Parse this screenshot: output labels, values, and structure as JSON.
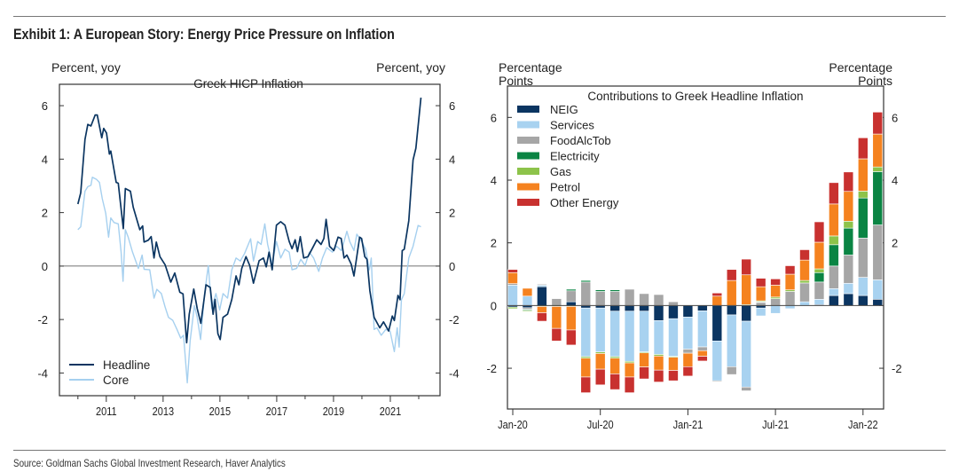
{
  "title": "Exhibit 1: A European Story: Energy Price Pressure on Inflation",
  "source": "Source: Goldman Sachs Global Investment Research, Haver Analytics",
  "chart_data": [
    {
      "type": "line",
      "title": "Greek HICP Inflation",
      "ylabel_left": "Percent, yoy",
      "ylabel_right": "Percent, yoy",
      "xlim": [
        2009.35,
        2022.75
      ],
      "ylim": [
        -4.85,
        6.8
      ],
      "yticks": [
        6,
        4,
        2,
        0,
        -2,
        -4
      ],
      "xtick_labels": [
        "2011",
        "2013",
        "2015",
        "2017",
        "2019",
        "2021"
      ],
      "xticks_minor": [
        2010,
        2012,
        2014,
        2016,
        2018,
        2020,
        2022
      ],
      "zero_line": true,
      "grid": false,
      "legend": "bottom-left",
      "series": [
        {
          "name": "Headline",
          "color": "#0b3561",
          "points": [
            [
              2010.0,
              2.32
            ],
            [
              2010.1,
              2.74
            ],
            [
              2010.25,
              4.74
            ],
            [
              2010.35,
              5.3
            ],
            [
              2010.46,
              5.24
            ],
            [
              2010.61,
              5.65
            ],
            [
              2010.68,
              5.65
            ],
            [
              2010.84,
              4.8
            ],
            [
              2010.91,
              5.15
            ],
            [
              2011.01,
              4.97
            ],
            [
              2011.11,
              4.19
            ],
            [
              2011.16,
              4.3
            ],
            [
              2011.35,
              3.13
            ],
            [
              2011.42,
              3.1
            ],
            [
              2011.6,
              1.4
            ],
            [
              2011.67,
              2.9
            ],
            [
              2011.85,
              2.8
            ],
            [
              2011.95,
              2.2
            ],
            [
              2012.18,
              1.36
            ],
            [
              2012.28,
              1.5
            ],
            [
              2012.33,
              0.9
            ],
            [
              2012.48,
              0.97
            ],
            [
              2012.58,
              1.1
            ],
            [
              2012.68,
              0.3
            ],
            [
              2012.76,
              0.9
            ],
            [
              2012.89,
              0.35
            ],
            [
              2013.07,
              0.05
            ],
            [
              2013.27,
              -0.6
            ],
            [
              2013.41,
              -0.26
            ],
            [
              2013.59,
              -0.98
            ],
            [
              2013.7,
              -1.04
            ],
            [
              2013.83,
              -2.87
            ],
            [
              2013.92,
              -1.8
            ],
            [
              2014.08,
              -0.86
            ],
            [
              2014.2,
              -1.59
            ],
            [
              2014.33,
              -2.14
            ],
            [
              2014.51,
              -0.7
            ],
            [
              2014.66,
              -0.8
            ],
            [
              2014.76,
              -1.8
            ],
            [
              2014.83,
              -1.25
            ],
            [
              2014.93,
              -2.53
            ],
            [
              2015.01,
              -2.75
            ],
            [
              2015.11,
              -1.92
            ],
            [
              2015.27,
              -1.8
            ],
            [
              2015.42,
              -1.25
            ],
            [
              2015.57,
              -0.37
            ],
            [
              2015.67,
              -0.7
            ],
            [
              2015.77,
              -0.09
            ],
            [
              2015.92,
              0.35
            ],
            [
              2016.05,
              0.02
            ],
            [
              2016.18,
              -0.64
            ],
            [
              2016.38,
              0.2
            ],
            [
              2016.53,
              0.3
            ],
            [
              2016.63,
              -0.03
            ],
            [
              2016.73,
              0.52
            ],
            [
              2016.84,
              -0.14
            ],
            [
              2016.99,
              1.53
            ],
            [
              2017.14,
              1.66
            ],
            [
              2017.29,
              1.53
            ],
            [
              2017.44,
              0.92
            ],
            [
              2017.54,
              0.65
            ],
            [
              2017.65,
              0.98
            ],
            [
              2017.73,
              0.54
            ],
            [
              2017.83,
              1.1
            ],
            [
              2017.95,
              0.3
            ],
            [
              2018.1,
              0.35
            ],
            [
              2018.25,
              0.65
            ],
            [
              2018.41,
              0.98
            ],
            [
              2018.56,
              0.81
            ],
            [
              2018.66,
              1.03
            ],
            [
              2018.74,
              1.75
            ],
            [
              2018.86,
              0.74
            ],
            [
              2019.01,
              0.58
            ],
            [
              2019.16,
              1.08
            ],
            [
              2019.27,
              1.03
            ],
            [
              2019.37,
              0.3
            ],
            [
              2019.47,
              0.41
            ],
            [
              2019.62,
              0.08
            ],
            [
              2019.72,
              -0.37
            ],
            [
              2019.92,
              1.08
            ],
            [
              2019.99,
              1.03
            ],
            [
              2020.1,
              0.35
            ],
            [
              2020.18,
              0.25
            ],
            [
              2020.28,
              -0.92
            ],
            [
              2020.43,
              -1.92
            ],
            [
              2020.63,
              -2.31
            ],
            [
              2020.76,
              -2.09
            ],
            [
              2020.94,
              -2.43
            ],
            [
              2021.07,
              -1.87
            ],
            [
              2021.14,
              -2.04
            ],
            [
              2021.27,
              -1.1
            ],
            [
              2021.34,
              -1.26
            ],
            [
              2021.42,
              0.58
            ],
            [
              2021.49,
              0.63
            ],
            [
              2021.65,
              1.7
            ],
            [
              2021.8,
              3.97
            ],
            [
              2021.9,
              4.41
            ],
            [
              2022.08,
              6.3
            ]
          ]
        },
        {
          "name": "Core",
          "color": "#a6d0ef",
          "points": [
            [
              2010.0,
              1.36
            ],
            [
              2010.1,
              1.47
            ],
            [
              2010.25,
              2.8
            ],
            [
              2010.35,
              2.97
            ],
            [
              2010.46,
              3.02
            ],
            [
              2010.51,
              3.32
            ],
            [
              2010.66,
              3.24
            ],
            [
              2010.76,
              3.13
            ],
            [
              2010.86,
              2.52
            ],
            [
              2010.98,
              1.97
            ],
            [
              2011.08,
              1.08
            ],
            [
              2011.16,
              1.8
            ],
            [
              2011.27,
              1.63
            ],
            [
              2011.42,
              1.58
            ],
            [
              2011.52,
              0.53
            ],
            [
              2011.59,
              -0.57
            ],
            [
              2011.67,
              1.36
            ],
            [
              2011.77,
              1.08
            ],
            [
              2011.92,
              0.53
            ],
            [
              2012.13,
              -0.09
            ],
            [
              2012.26,
              0.41
            ],
            [
              2012.33,
              -0.12
            ],
            [
              2012.53,
              -0.14
            ],
            [
              2012.68,
              -1.2
            ],
            [
              2012.78,
              -0.87
            ],
            [
              2012.94,
              -1.03
            ],
            [
              2013.07,
              -1.53
            ],
            [
              2013.19,
              -1.92
            ],
            [
              2013.34,
              -2.03
            ],
            [
              2013.49,
              -2.37
            ],
            [
              2013.62,
              -2.7
            ],
            [
              2013.72,
              -2.59
            ],
            [
              2013.85,
              -4.37
            ],
            [
              2013.95,
              -2.81
            ],
            [
              2014.1,
              -1.48
            ],
            [
              2014.2,
              -1.92
            ],
            [
              2014.32,
              -2.75
            ],
            [
              2014.46,
              -1.03
            ],
            [
              2014.59,
              0.02
            ],
            [
              2014.71,
              -1.59
            ],
            [
              2014.86,
              -1.03
            ],
            [
              2014.99,
              -1.64
            ],
            [
              2015.11,
              -1.03
            ],
            [
              2015.27,
              -1.2
            ],
            [
              2015.42,
              -0.14
            ],
            [
              2015.57,
              0.3
            ],
            [
              2015.72,
              0.19
            ],
            [
              2015.87,
              0.47
            ],
            [
              2016.08,
              1.02
            ],
            [
              2016.18,
              0.19
            ],
            [
              2016.33,
              0.92
            ],
            [
              2016.45,
              0.81
            ],
            [
              2016.58,
              1.58
            ],
            [
              2016.68,
              0.81
            ],
            [
              2016.84,
              0.08
            ],
            [
              2016.99,
              0.92
            ],
            [
              2017.14,
              0.3
            ],
            [
              2017.29,
              0.63
            ],
            [
              2017.44,
              0.52
            ],
            [
              2017.54,
              -0.14
            ],
            [
              2017.7,
              -0.09
            ],
            [
              2017.85,
              0.25
            ],
            [
              2018.0,
              0.02
            ],
            [
              2018.15,
              0.52
            ],
            [
              2018.3,
              0.3
            ],
            [
              2018.48,
              -0.2
            ],
            [
              2018.61,
              0.3
            ],
            [
              2018.76,
              0.69
            ],
            [
              2018.96,
              0.52
            ],
            [
              2019.11,
              0.74
            ],
            [
              2019.27,
              0.58
            ],
            [
              2019.37,
              0.92
            ],
            [
              2019.47,
              1.3
            ],
            [
              2019.57,
              0.92
            ],
            [
              2019.72,
              0.58
            ],
            [
              2019.82,
              1.19
            ],
            [
              2019.97,
              0.97
            ],
            [
              2020.13,
              0.63
            ],
            [
              2020.26,
              -0.14
            ],
            [
              2020.33,
              0.3
            ],
            [
              2020.43,
              -2.37
            ],
            [
              2020.53,
              -2.31
            ],
            [
              2020.68,
              -2.59
            ],
            [
              2020.84,
              -2.37
            ],
            [
              2020.99,
              -2.43
            ],
            [
              2021.14,
              -3.2
            ],
            [
              2021.24,
              -2.31
            ],
            [
              2021.31,
              -3.03
            ],
            [
              2021.39,
              -1.26
            ],
            [
              2021.49,
              -1.03
            ],
            [
              2021.65,
              0.3
            ],
            [
              2021.8,
              0.74
            ],
            [
              2021.98,
              1.52
            ],
            [
              2022.08,
              1.47
            ]
          ]
        }
      ]
    },
    {
      "type": "bar",
      "stacked": true,
      "title": "Contributions to Greek Headline Inflation",
      "ylabel_left": "Percentage Points",
      "ylabel_right": "Percentage Points",
      "ylim": [
        -3.3,
        7.0
      ],
      "yticks_left": [
        6,
        4,
        2,
        0,
        -2
      ],
      "yticks_right": [
        6,
        4,
        2,
        -2
      ],
      "grid": false,
      "legend": "top-left",
      "categories": [
        "Jan-20",
        "Feb-20",
        "Mar-20",
        "Apr-20",
        "May-20",
        "Jun-20",
        "Jul-20",
        "Aug-20",
        "Sep-20",
        "Oct-20",
        "Nov-20",
        "Dec-20",
        "Jan-21",
        "Feb-21",
        "Mar-21",
        "Apr-21",
        "May-21",
        "Jun-21",
        "Jul-21",
        "Aug-21",
        "Sep-21",
        "Oct-21",
        "Nov-21",
        "Dec-21",
        "Jan-22",
        "Feb-22"
      ],
      "xtick_labels": [
        "Jan-20",
        "Jul-20",
        "Jan-21",
        "Jul-21",
        "Jan-22"
      ],
      "series": [
        {
          "name": "NEIG",
          "color": "#0b3561",
          "values": [
            -0.05,
            -0.07,
            0.6,
            0,
            0.12,
            -0.08,
            -0.08,
            -0.18,
            -0.18,
            -0.18,
            -0.48,
            -0.42,
            -0.37,
            -0.17,
            -1.13,
            -0.3,
            -0.5,
            -0.08,
            0,
            0,
            0,
            0.03,
            0.32,
            0.38,
            0.32,
            0.2
          ]
        },
        {
          "name": "Services",
          "color": "#a8d2f0",
          "values": [
            0.65,
            0.3,
            0.05,
            0,
            0,
            -1.55,
            -1.4,
            -1.45,
            -1.6,
            -1.3,
            -1.08,
            -1.2,
            -1.02,
            -1.15,
            -1.27,
            -1.65,
            -2.1,
            -0.25,
            -0.25,
            -0.1,
            0.12,
            0.17,
            0.22,
            0.33,
            0.58,
            0.62
          ]
        },
        {
          "name": "FoodAlcTob",
          "color": "#a6a6a6",
          "values": [
            0.05,
            -0.05,
            0.03,
            0.22,
            0.35,
            0.75,
            0.45,
            0.45,
            0.52,
            0.38,
            0.35,
            0.12,
            -0.13,
            -0.12,
            -0.03,
            -0.25,
            -0.12,
            0.1,
            0.22,
            0.45,
            0.6,
            0.55,
            0.72,
            0.9,
            1.25,
            1.75
          ]
        },
        {
          "name": "Electricity",
          "color": "#0a8443",
          "values": [
            0,
            -0.03,
            -0.03,
            0,
            0.05,
            0.05,
            0.05,
            0.05,
            0,
            0,
            0,
            0,
            0,
            0,
            0,
            0,
            0,
            0.02,
            0,
            0,
            0,
            0.3,
            0.68,
            0.86,
            1.28,
            1.7
          ]
        },
        {
          "name": "Gas",
          "color": "#8dc34a",
          "values": [
            -0.05,
            -0.03,
            0,
            -0.03,
            -0.03,
            -0.05,
            -0.05,
            -0.05,
            -0.05,
            -0.03,
            -0.05,
            -0.03,
            0,
            0,
            0,
            0,
            0.03,
            0.03,
            0.05,
            0.05,
            0.08,
            0.12,
            0.28,
            0.22,
            0.22,
            0.15
          ]
        },
        {
          "name": "Petrol",
          "color": "#f5821f",
          "values": [
            0.35,
            0.25,
            -0.2,
            -0.7,
            -0.75,
            -0.6,
            -0.5,
            -0.5,
            -0.45,
            -0.45,
            -0.45,
            -0.42,
            -0.43,
            -0.18,
            0.3,
            0.8,
            0.95,
            0.45,
            0.38,
            0.5,
            0.65,
            0.85,
            1.02,
            0.95,
            1.03,
            1.05
          ]
        },
        {
          "name": "Other Energy",
          "color": "#c8312f",
          "values": [
            0.1,
            0,
            -0.27,
            -0.4,
            -0.48,
            -0.5,
            -0.5,
            -0.5,
            -0.5,
            -0.38,
            -0.38,
            -0.33,
            -0.3,
            -0.15,
            0.1,
            0.35,
            0.5,
            0.27,
            0.2,
            0.27,
            0.33,
            0.65,
            0.68,
            0.62,
            0.67,
            0.7
          ]
        }
      ]
    }
  ]
}
